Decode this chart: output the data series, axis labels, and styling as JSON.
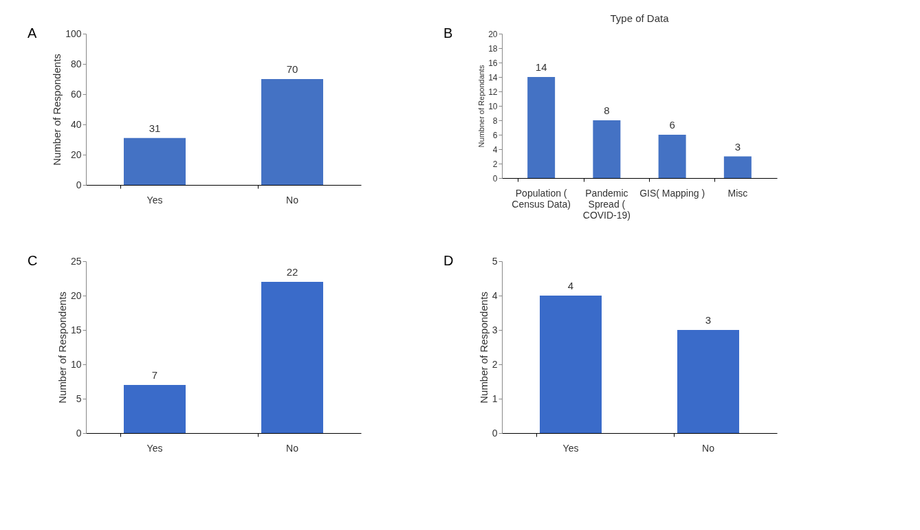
{
  "chart_data": [
    {
      "type": "bar",
      "annotations": [
        "A"
      ],
      "ylabel": "Number of Respondents",
      "categories": [
        "Yes",
        "No"
      ],
      "values": [
        31,
        70
      ],
      "color": "#4472c4",
      "ylim": [
        0,
        100
      ],
      "yticks": [
        0,
        20,
        40,
        60,
        80,
        100
      ],
      "data_labels": true
    },
    {
      "type": "bar",
      "annotations": [
        "B"
      ],
      "title": "Type of Data",
      "ylabel": "Numbner of Repondants",
      "categories": [
        "Population (\nCensus Data)",
        "Pandemic\nSpread (\nCOVID-19)",
        "GIS( Mapping )",
        "Misc"
      ],
      "values": [
        14,
        8,
        6,
        3
      ],
      "color": "#4472c4",
      "ylim": [
        0,
        20
      ],
      "yticks": [
        0,
        2,
        4,
        6,
        8,
        10,
        12,
        14,
        16,
        18,
        20
      ],
      "data_labels": true
    },
    {
      "type": "bar",
      "annotations": [
        "C"
      ],
      "ylabel": "Number of Respondents",
      "categories": [
        "Yes",
        "No"
      ],
      "values": [
        7,
        22
      ],
      "color": "#3a6bc9",
      "ylim": [
        0,
        25
      ],
      "yticks": [
        0,
        5,
        10,
        15,
        20,
        25
      ],
      "data_labels": true
    },
    {
      "type": "bar",
      "annotations": [
        "D"
      ],
      "ylabel": "Number of Respondents",
      "categories": [
        "Yes",
        "No"
      ],
      "values": [
        4,
        3
      ],
      "color": "#3a6bc9",
      "ylim": [
        0,
        5
      ],
      "yticks": [
        0,
        1,
        2,
        3,
        4,
        5
      ],
      "data_labels": true
    }
  ]
}
